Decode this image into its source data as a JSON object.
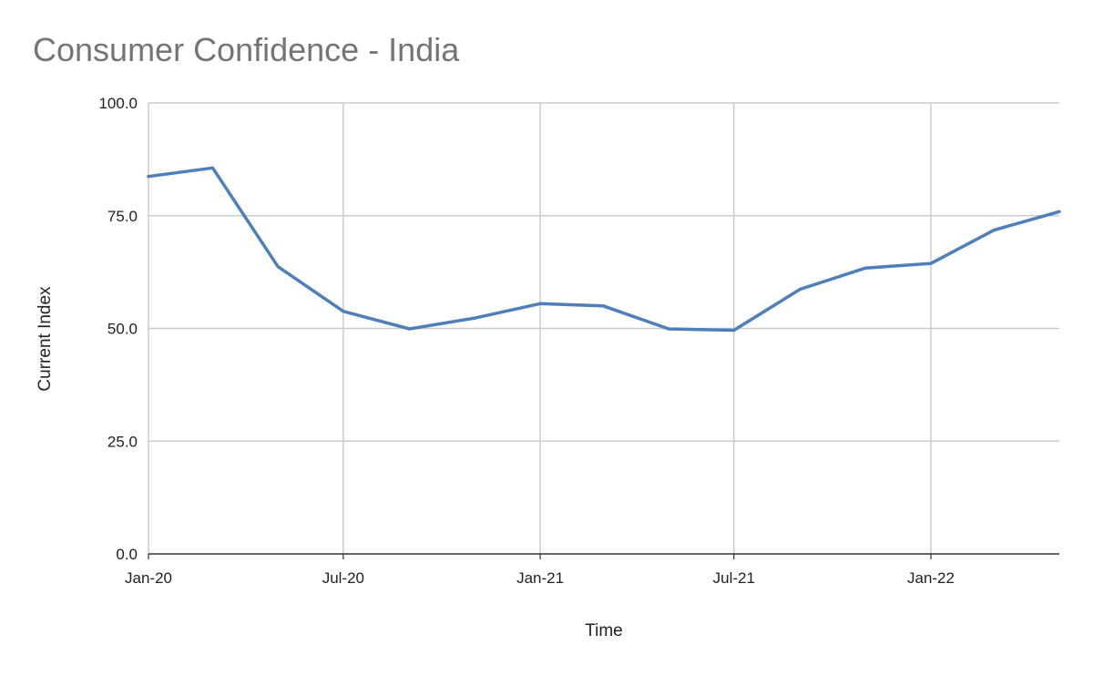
{
  "chart_data": {
    "type": "line",
    "title": "Consumer Confidence - India",
    "xlabel": "Time",
    "ylabel": "Current Index",
    "x": [
      "2020-01-01",
      "2020-03-01",
      "2020-05-01",
      "2020-07-01",
      "2020-09-01",
      "2020-11-01",
      "2021-01-01",
      "2021-03-01",
      "2021-05-01",
      "2021-07-01",
      "2021-09-01",
      "2021-11-01",
      "2022-01-01",
      "2022-03-01",
      "2022-05-01"
    ],
    "series": [
      {
        "values": [
          83.7,
          85.6,
          63.7,
          53.8,
          49.9,
          52.3,
          55.5,
          55.0,
          49.9,
          49.6,
          58.7,
          63.4,
          64.4,
          71.8,
          75.9
        ]
      }
    ],
    "ylim": [
      0,
      100
    ],
    "xlim": [
      "2020-01-01",
      "2022-05-01"
    ],
    "y_ticks": [
      "0.0",
      "25.0",
      "50.0",
      "75.0",
      "100.0"
    ],
    "x_ticks": [
      {
        "label": "Jan-20",
        "date": "2020-01-01"
      },
      {
        "label": "Jul-20",
        "date": "2020-07-01"
      },
      {
        "label": "Jan-21",
        "date": "2021-01-01"
      },
      {
        "label": "Jul-21",
        "date": "2021-07-01"
      },
      {
        "label": "Jan-22",
        "date": "2022-01-01"
      }
    ],
    "grid": true,
    "line_color": "#4f7fbb"
  }
}
